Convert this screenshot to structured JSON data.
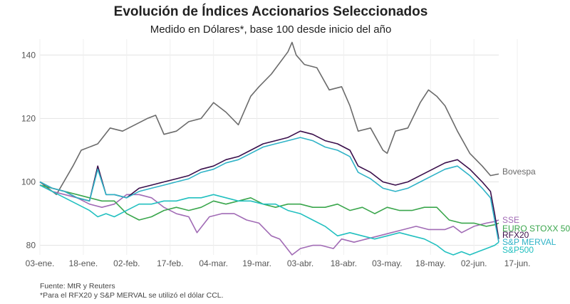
{
  "title": "Evolución de Índices Accionarios Seleccionados",
  "subtitle": "Medido en Dólares*, base 100 desde inicio del año",
  "source_line1": "Fuente: MtR y Reuters",
  "source_line2": "*Para el RFX20 y S&P MERVAL se utilizó el dólar CCL.",
  "chart_data": {
    "type": "line",
    "xlabel": "",
    "ylabel": "",
    "ylim": [
      77,
      145
    ],
    "x_ticks": [
      "03-ene.",
      "18-ene.",
      "02-feb.",
      "17-feb.",
      "04-mar.",
      "19-mar.",
      "03-abr.",
      "18-abr.",
      "03-may.",
      "18-may.",
      "02-jun.",
      "17-jun."
    ],
    "y_ticks": [
      80,
      100,
      120,
      140
    ],
    "grid": true,
    "legend": "labels at right end of lines",
    "series": [
      {
        "name": "Bovespa",
        "color": "#6b6b6b",
        "values": [
          [
            0,
            100
          ],
          [
            4,
            96
          ],
          [
            8,
            105
          ],
          [
            10,
            110
          ],
          [
            14,
            112
          ],
          [
            17,
            117
          ],
          [
            20,
            116
          ],
          [
            23,
            118
          ],
          [
            26,
            120
          ],
          [
            28,
            121
          ],
          [
            29,
            118
          ],
          [
            30,
            115
          ],
          [
            33,
            116
          ],
          [
            36,
            119
          ],
          [
            39,
            120
          ],
          [
            42,
            125
          ],
          [
            45,
            122
          ],
          [
            48,
            118
          ],
          [
            51,
            127
          ],
          [
            53,
            130
          ],
          [
            56,
            134
          ],
          [
            60,
            141
          ],
          [
            61,
            144
          ],
          [
            62,
            140
          ],
          [
            64,
            137
          ],
          [
            67,
            136
          ],
          [
            70,
            129
          ],
          [
            73,
            130
          ],
          [
            75,
            124
          ],
          [
            77,
            116
          ],
          [
            80,
            117
          ],
          [
            83,
            110
          ],
          [
            84,
            109
          ],
          [
            86,
            116
          ],
          [
            89,
            117
          ],
          [
            92,
            125
          ],
          [
            94,
            129
          ],
          [
            96,
            127
          ],
          [
            98,
            124
          ],
          [
            101,
            116
          ],
          [
            104,
            109
          ],
          [
            107,
            105
          ],
          [
            109,
            102
          ],
          [
            111,
            102.5
          ]
        ]
      },
      {
        "name": "SSE",
        "color": "#a16bb5",
        "values": [
          [
            0,
            99
          ],
          [
            3,
            97
          ],
          [
            6,
            96
          ],
          [
            9,
            95
          ],
          [
            12,
            93
          ],
          [
            15,
            92
          ],
          [
            18,
            93
          ],
          [
            21,
            96
          ],
          [
            24,
            96
          ],
          [
            27,
            95
          ],
          [
            30,
            92
          ],
          [
            33,
            90
          ],
          [
            36,
            89
          ],
          [
            38,
            84
          ],
          [
            41,
            89
          ],
          [
            44,
            90
          ],
          [
            47,
            90
          ],
          [
            50,
            88
          ],
          [
            53,
            87
          ],
          [
            56,
            83
          ],
          [
            58,
            82
          ],
          [
            61,
            77
          ],
          [
            63,
            79
          ],
          [
            66,
            80
          ],
          [
            68,
            80
          ],
          [
            71,
            79
          ],
          [
            73,
            82
          ],
          [
            76,
            81
          ],
          [
            79,
            82
          ],
          [
            82,
            83
          ],
          [
            85,
            84
          ],
          [
            88,
            85
          ],
          [
            91,
            86
          ],
          [
            94,
            85
          ],
          [
            96,
            85
          ],
          [
            98,
            85
          ],
          [
            100,
            86
          ],
          [
            102,
            84
          ],
          [
            105,
            86
          ],
          [
            108,
            87
          ],
          [
            110,
            87.5
          ],
          [
            111,
            88
          ]
        ]
      },
      {
        "name": "EURO STOXX 50",
        "color": "#3aa64c",
        "values": [
          [
            0,
            99
          ],
          [
            3,
            98
          ],
          [
            6,
            97
          ],
          [
            9,
            96
          ],
          [
            12,
            95
          ],
          [
            15,
            94
          ],
          [
            18,
            94
          ],
          [
            21,
            90
          ],
          [
            24,
            88
          ],
          [
            27,
            89
          ],
          [
            30,
            91
          ],
          [
            33,
            92
          ],
          [
            36,
            91
          ],
          [
            39,
            92
          ],
          [
            42,
            94
          ],
          [
            45,
            93
          ],
          [
            48,
            94
          ],
          [
            51,
            95
          ],
          [
            54,
            93
          ],
          [
            57,
            92
          ],
          [
            60,
            93
          ],
          [
            63,
            93
          ],
          [
            66,
            92
          ],
          [
            69,
            92
          ],
          [
            72,
            93
          ],
          [
            75,
            91
          ],
          [
            78,
            92
          ],
          [
            81,
            90
          ],
          [
            84,
            92
          ],
          [
            87,
            91
          ],
          [
            90,
            91
          ],
          [
            93,
            92
          ],
          [
            96,
            92
          ],
          [
            99,
            88
          ],
          [
            102,
            87
          ],
          [
            105,
            87
          ],
          [
            108,
            86
          ],
          [
            110,
            86.5
          ],
          [
            111,
            87
          ]
        ]
      },
      {
        "name": "RFX20",
        "color": "#3a0f4b",
        "values": [
          [
            0,
            100
          ],
          [
            3,
            98
          ],
          [
            6,
            97
          ],
          [
            9,
            95
          ],
          [
            12,
            94
          ],
          [
            14,
            105
          ],
          [
            16,
            96
          ],
          [
            18,
            96
          ],
          [
            21,
            95
          ],
          [
            24,
            98
          ],
          [
            27,
            99
          ],
          [
            30,
            100
          ],
          [
            33,
            101
          ],
          [
            36,
            102
          ],
          [
            39,
            104
          ],
          [
            42,
            105
          ],
          [
            45,
            107
          ],
          [
            48,
            108
          ],
          [
            51,
            110
          ],
          [
            54,
            112
          ],
          [
            57,
            113
          ],
          [
            60,
            114
          ],
          [
            63,
            116
          ],
          [
            66,
            115
          ],
          [
            69,
            113
          ],
          [
            72,
            112
          ],
          [
            75,
            110
          ],
          [
            77,
            105
          ],
          [
            80,
            103
          ],
          [
            83,
            100
          ],
          [
            86,
            99
          ],
          [
            89,
            100
          ],
          [
            92,
            102
          ],
          [
            95,
            104
          ],
          [
            98,
            106
          ],
          [
            101,
            107
          ],
          [
            104,
            104
          ],
          [
            107,
            100
          ],
          [
            109,
            97
          ],
          [
            110,
            90
          ],
          [
            111,
            82
          ]
        ]
      },
      {
        "name": "S&P MERVAL",
        "color": "#2fb3c7",
        "values": [
          [
            0,
            100
          ],
          [
            3,
            98
          ],
          [
            6,
            97
          ],
          [
            9,
            95
          ],
          [
            12,
            94
          ],
          [
            14,
            104
          ],
          [
            16,
            96
          ],
          [
            18,
            96
          ],
          [
            21,
            95
          ],
          [
            24,
            97
          ],
          [
            27,
            98
          ],
          [
            30,
            99
          ],
          [
            33,
            100
          ],
          [
            36,
            101
          ],
          [
            39,
            103
          ],
          [
            42,
            104
          ],
          [
            45,
            106
          ],
          [
            48,
            107
          ],
          [
            51,
            109
          ],
          [
            54,
            111
          ],
          [
            57,
            112
          ],
          [
            60,
            113
          ],
          [
            63,
            114
          ],
          [
            66,
            113
          ],
          [
            69,
            111
          ],
          [
            72,
            110
          ],
          [
            75,
            108
          ],
          [
            77,
            103
          ],
          [
            80,
            101
          ],
          [
            83,
            98
          ],
          [
            86,
            97
          ],
          [
            89,
            98
          ],
          [
            92,
            100
          ],
          [
            95,
            102
          ],
          [
            98,
            104
          ],
          [
            101,
            105
          ],
          [
            104,
            102
          ],
          [
            107,
            98
          ],
          [
            109,
            95
          ],
          [
            110,
            88
          ],
          [
            111,
            81
          ]
        ]
      },
      {
        "name": "S&P500",
        "color": "#22c0c0",
        "values": [
          [
            0,
            99
          ],
          [
            3,
            97
          ],
          [
            6,
            95
          ],
          [
            9,
            93
          ],
          [
            12,
            91
          ],
          [
            14,
            89
          ],
          [
            16,
            90
          ],
          [
            18,
            89
          ],
          [
            21,
            91
          ],
          [
            24,
            93
          ],
          [
            27,
            93
          ],
          [
            30,
            94
          ],
          [
            33,
            94
          ],
          [
            36,
            95
          ],
          [
            39,
            95
          ],
          [
            42,
            96
          ],
          [
            45,
            95
          ],
          [
            48,
            94
          ],
          [
            51,
            94
          ],
          [
            54,
            93
          ],
          [
            57,
            93
          ],
          [
            60,
            91
          ],
          [
            63,
            90
          ],
          [
            66,
            88
          ],
          [
            69,
            86
          ],
          [
            72,
            83
          ],
          [
            75,
            84
          ],
          [
            78,
            83
          ],
          [
            81,
            82
          ],
          [
            84,
            83
          ],
          [
            87,
            84
          ],
          [
            90,
            83
          ],
          [
            93,
            82
          ],
          [
            96,
            80
          ],
          [
            98,
            78
          ],
          [
            100,
            77
          ],
          [
            102,
            78
          ],
          [
            104,
            77
          ],
          [
            106,
            78
          ],
          [
            108,
            79
          ],
          [
            110,
            80
          ],
          [
            111,
            81
          ]
        ]
      }
    ]
  }
}
